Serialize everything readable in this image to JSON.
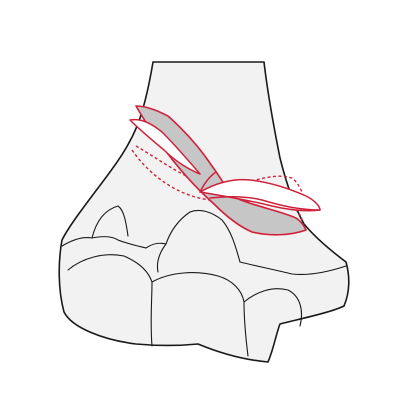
{
  "figure": {
    "subject": "distal-humerus-bone",
    "colors": {
      "background": "#ffffff",
      "bone_fill": "#f2f2f2",
      "bone_outline": "#1a1a1a",
      "cut_outline": "#d0213b",
      "cut_fill_gray": "#c6c6c6",
      "cut_fill_white": "#ffffff"
    },
    "elements": [
      "bone-shaft",
      "bone-condyles",
      "osteotomy-wedge-front",
      "osteotomy-wedge-back",
      "osteotomy-gap"
    ]
  }
}
